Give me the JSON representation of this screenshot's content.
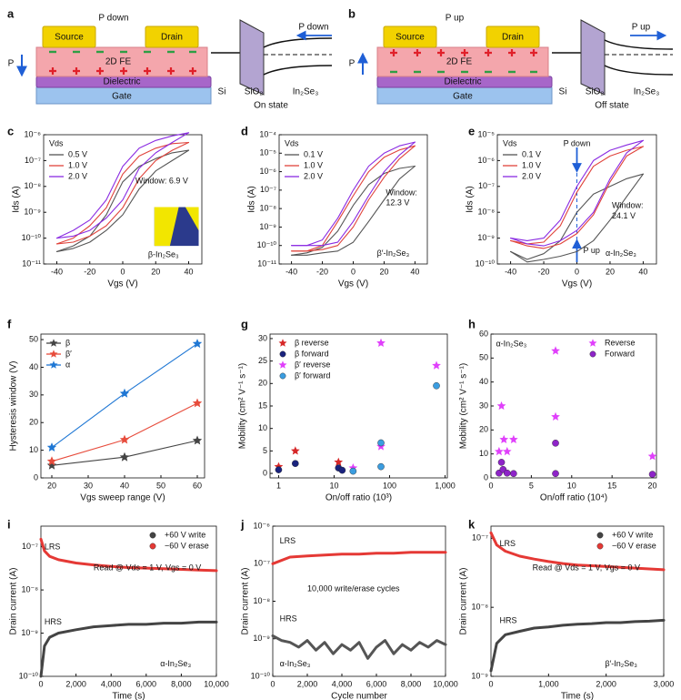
{
  "diagrams": [
    {
      "panel": "a",
      "title": "P down",
      "source": "Source",
      "drain": "Drain",
      "fe": "2D FE",
      "dielectric": "Dielectric",
      "gate": "Gate",
      "p": "P",
      "si": "Si",
      "oxide": "SiO₂",
      "semiconductor": "In₂Se₃",
      "band_label": "P down",
      "state": "On state",
      "p_direction": "down"
    },
    {
      "panel": "b",
      "title": "P up",
      "source": "Source",
      "drain": "Drain",
      "fe": "2D FE",
      "dielectric": "Dielectric",
      "gate": "Gate",
      "p": "P",
      "si": "Si",
      "oxide": "SiO₂",
      "semiconductor": "In₂Se₃",
      "band_label": "P up",
      "state": "Off state",
      "p_direction": "up"
    }
  ],
  "chart_data": [
    {
      "panel": "c",
      "type": "line",
      "x": [
        -40,
        -30,
        -20,
        -10,
        0,
        10,
        20,
        30,
        40
      ],
      "xlim": [
        -48,
        48
      ],
      "xticks": [
        -40,
        -20,
        0,
        20,
        40
      ],
      "yscale": "log",
      "ylim": [
        1e-11,
        1e-06
      ],
      "yticks": [
        {
          "value": 1e-11,
          "label": "10⁻¹¹"
        },
        {
          "value": 1e-10,
          "label": "10⁻¹⁰"
        },
        {
          "value": 1e-09,
          "label": "10⁻⁹"
        },
        {
          "value": 1e-08,
          "label": "10⁻⁸"
        },
        {
          "value": 1e-07,
          "label": "10⁻⁷"
        },
        {
          "value": 1e-06,
          "label": "10⁻⁶"
        }
      ],
      "xlabel": "Vgs (V)",
      "ylabel": "Ids (A)",
      "legend": "upper left",
      "legend_title": "Vds",
      "series": [
        {
          "name": "0.5 V",
          "color": "#555555",
          "values": [
            3e-11,
            5e-11,
            1.2e-10,
            8e-10,
            1.5e-08,
            6e-08,
            1.2e-07,
            2e-07,
            2.5e-07
          ],
          "reverse_values": [
            3e-11,
            4e-11,
            7e-11,
            2e-10,
            8e-10,
            8e-09,
            4e-08,
            1e-07,
            2.5e-07
          ]
        },
        {
          "name": "1.0 V",
          "color": "#e0433b",
          "values": [
            6e-11,
            1e-10,
            3e-10,
            1.5e-09,
            3e-08,
            1.5e-07,
            3e-07,
            4.5e-07,
            5e-07
          ],
          "reverse_values": [
            6e-11,
            7e-11,
            1.2e-10,
            3e-10,
            1.5e-09,
            2e-08,
            1e-07,
            2.5e-07,
            5e-07
          ]
        },
        {
          "name": "2.0 V",
          "color": "#8a2be2",
          "values": [
            1e-10,
            2e-10,
            5e-10,
            3e-09,
            6e-08,
            3e-07,
            6e-07,
            9e-07,
            1.2e-06
          ],
          "reverse_values": [
            1e-10,
            1.2e-10,
            2e-10,
            6e-10,
            3e-09,
            5e-08,
            2e-07,
            5e-07,
            1.2e-06
          ]
        }
      ],
      "annotations": [
        "Window: 6.9 V",
        "β-In₂Se₃"
      ]
    },
    {
      "panel": "d",
      "type": "line",
      "x": [
        -40,
        -30,
        -20,
        -10,
        0,
        10,
        20,
        30,
        40
      ],
      "xlim": [
        -48,
        48
      ],
      "xticks": [
        -40,
        -20,
        0,
        20,
        40
      ],
      "yscale": "log",
      "ylim": [
        1e-11,
        0.0001
      ],
      "yticks": [
        {
          "value": 1e-11,
          "label": "10⁻¹¹"
        },
        {
          "value": 1e-10,
          "label": "10⁻¹⁰"
        },
        {
          "value": 1e-09,
          "label": "10⁻⁹"
        },
        {
          "value": 1e-08,
          "label": "10⁻⁸"
        },
        {
          "value": 1e-07,
          "label": "10⁻⁷"
        },
        {
          "value": 1e-06,
          "label": "10⁻⁶"
        },
        {
          "value": 1e-05,
          "label": "10⁻⁵"
        },
        {
          "value": 0.0001,
          "label": "10⁻⁴"
        }
      ],
      "xlabel": "Vgs (V)",
      "ylabel": "Ids (A)",
      "legend": "upper left",
      "legend_title": "Vds",
      "series": [
        {
          "name": "0.1 V",
          "color": "#555555",
          "values": [
            3e-11,
            4e-11,
            8e-11,
            6e-10,
            1.5e-08,
            2e-07,
            8e-07,
            1.5e-06,
            2e-06
          ],
          "reverse_values": [
            3e-11,
            3e-11,
            4e-11,
            5e-11,
            1.5e-10,
            2e-09,
            3e-08,
            4e-07,
            2e-06
          ]
        },
        {
          "name": "1.0 V",
          "color": "#e0433b",
          "values": [
            5e-11,
            5e-11,
            1e-10,
            2e-09,
            5e-08,
            1e-06,
            6e-06,
            1.5e-05,
            2.5e-05
          ],
          "reverse_values": [
            5e-11,
            5e-11,
            6e-11,
            1e-10,
            1e-09,
            3e-08,
            5e-07,
            5e-06,
            2.5e-05
          ]
        },
        {
          "name": "2.0 V",
          "color": "#8a2be2",
          "values": [
            1e-10,
            1e-10,
            2e-10,
            3e-09,
            1e-07,
            2e-06,
            1e-05,
            2.5e-05,
            4e-05
          ],
          "reverse_values": [
            1e-10,
            1e-10,
            1e-10,
            1.5e-10,
            2e-09,
            5e-08,
            1e-06,
            8e-06,
            4e-05
          ]
        }
      ],
      "annotations": [
        "Window:",
        "12.3 V",
        "β′-In₂Se₃"
      ]
    },
    {
      "panel": "e",
      "type": "line",
      "x": [
        -40,
        -30,
        -20,
        -10,
        0,
        10,
        20,
        30,
        40
      ],
      "xlim": [
        -48,
        48
      ],
      "xticks": [
        -40,
        -20,
        0,
        20,
        40
      ],
      "yscale": "log",
      "ylim": [
        1e-10,
        1e-05
      ],
      "yticks": [
        {
          "value": 1e-10,
          "label": "10⁻¹⁰"
        },
        {
          "value": 1e-09,
          "label": "10⁻⁹"
        },
        {
          "value": 1e-08,
          "label": "10⁻⁸"
        },
        {
          "value": 1e-07,
          "label": "10⁻⁷"
        },
        {
          "value": 1e-06,
          "label": "10⁻⁶"
        },
        {
          "value": 1e-05,
          "label": "10⁻⁵"
        }
      ],
      "xlabel": "Vgs (V)",
      "ylabel": "Ids (A)",
      "legend": "upper left",
      "legend_title": "Vds",
      "series": [
        {
          "name": "0.1 V",
          "color": "#555555",
          "values": [
            3e-10,
            1.5e-10,
            2.5e-10,
            8e-10,
            1e-08,
            5e-08,
            1e-07,
            2e-07,
            3e-07
          ],
          "reverse_values": [
            3e-10,
            1.2e-10,
            1.5e-10,
            2e-10,
            3e-10,
            8e-10,
            5e-09,
            4e-08,
            3e-07
          ]
        },
        {
          "name": "1.0 V",
          "color": "#e0433b",
          "values": [
            8e-10,
            6e-10,
            7e-10,
            3e-09,
            6e-08,
            6e-07,
            1.5e-06,
            2.5e-06,
            3.5e-06
          ],
          "reverse_values": [
            8e-10,
            5e-10,
            4e-10,
            6e-10,
            1.5e-09,
            8e-09,
            1.5e-07,
            1.5e-06,
            3.5e-06
          ]
        },
        {
          "name": "2.0 V",
          "color": "#8a2be2",
          "values": [
            1e-09,
            8e-10,
            1e-09,
            5e-09,
            1e-07,
            1e-06,
            2.5e-06,
            4e-06,
            6e-06
          ],
          "reverse_values": [
            1e-09,
            6e-10,
            5e-10,
            8e-10,
            2e-09,
            1e-08,
            2e-07,
            2e-06,
            6e-06
          ]
        }
      ],
      "annotations": [
        "Window:",
        "24.1 V",
        "α-In₂Se₃",
        "P down",
        "P up"
      ]
    },
    {
      "panel": "f",
      "type": "line",
      "x": [
        20,
        40,
        60
      ],
      "xlim": [
        17,
        62
      ],
      "xticks": [
        20,
        30,
        40,
        50,
        60
      ],
      "ylim": [
        0,
        52
      ],
      "yticks": [
        0,
        10,
        20,
        30,
        40,
        50
      ],
      "xlabel": "Vgs sweep range (V)",
      "ylabel": "Hysteresis window (V)",
      "legend": "upper left",
      "series": [
        {
          "name": "β",
          "color": "#444444",
          "marker": "star",
          "values": [
            4.5,
            7.5,
            13.5
          ]
        },
        {
          "name": "β′",
          "color": "#e74c3c",
          "marker": "star",
          "values": [
            6,
            13.8,
            27
          ]
        },
        {
          "name": "α",
          "color": "#1f77d4",
          "marker": "star",
          "values": [
            11,
            30.5,
            48.5
          ]
        }
      ]
    },
    {
      "panel": "g",
      "type": "scatter",
      "xscale": "log",
      "xlim": [
        0.7,
        1100
      ],
      "xticks": [
        1,
        10,
        100,
        {
          "value": 1000,
          "label": "1,000"
        }
      ],
      "ylim": [
        -1,
        31
      ],
      "yticks": [
        0,
        5,
        10,
        15,
        20,
        25,
        30
      ],
      "xlabel": "On/off ratio (10³)",
      "ylabel": "Mobility (cm² V⁻¹ s⁻¹)",
      "legend": "upper left",
      "series": [
        {
          "name": "β reverse",
          "color": "#d62728",
          "marker": "star",
          "x": [
            1,
            2,
            12
          ],
          "values": [
            1.5,
            5,
            2.5
          ]
        },
        {
          "name": "β forward",
          "color": "#1a237e",
          "marker": "circle",
          "x": [
            1,
            2,
            12,
            14
          ],
          "values": [
            0.8,
            2.2,
            1.2,
            0.7
          ]
        },
        {
          "name": "β′ reverse",
          "color": "#e040fb",
          "marker": "star",
          "x": [
            22,
            70,
            70,
            700
          ],
          "values": [
            1.2,
            29,
            6,
            24
          ]
        },
        {
          "name": "β′ forward",
          "color": "#3b9de0",
          "marker": "circle",
          "x": [
            22,
            70,
            70,
            700
          ],
          "values": [
            0.5,
            1.5,
            6.8,
            19.5
          ]
        }
      ]
    },
    {
      "panel": "h",
      "type": "scatter",
      "xlim": [
        0,
        20.5
      ],
      "xticks": [
        0,
        5,
        10,
        15,
        20
      ],
      "ylim": [
        0,
        60
      ],
      "yticks": [
        0,
        10,
        20,
        30,
        40,
        50,
        60
      ],
      "xlabel": "On/off ratio (10⁴)",
      "ylabel": "Mobility (cm² V⁻¹ s⁻¹)",
      "legend": "upper right",
      "series": [
        {
          "name": "Reverse",
          "color": "#e040fb",
          "marker": "star",
          "x": [
            1,
            1.3,
            1.6,
            2,
            2.8,
            8,
            8,
            20
          ],
          "values": [
            11,
            30,
            16,
            11,
            16,
            53,
            25.5,
            9
          ]
        },
        {
          "name": "Forward",
          "color": "#8e24c8",
          "marker": "circle",
          "x": [
            1,
            1.3,
            1.5,
            2,
            2.8,
            8,
            8,
            20
          ],
          "values": [
            2,
            6.5,
            3.5,
            2,
            1.8,
            14.5,
            1.8,
            1.5
          ]
        }
      ],
      "annotations": [
        "α-In₂Se₃"
      ]
    },
    {
      "panel": "i",
      "type": "line",
      "x": [
        0,
        200,
        500,
        1000,
        2000,
        3000,
        4000,
        5000,
        6000,
        7000,
        8000,
        9000,
        10000
      ],
      "xlim": [
        0,
        10000
      ],
      "xticks": [
        0,
        {
          "value": 2000,
          "label": "2,000"
        },
        {
          "value": 4000,
          "label": "4,000"
        },
        {
          "value": 6000,
          "label": "6,000"
        },
        {
          "value": 8000,
          "label": "8,000"
        },
        {
          "value": 10000,
          "label": "10,000"
        }
      ],
      "yscale": "log",
      "ylim": [
        1e-10,
        3e-07
      ],
      "yticks": [
        {
          "value": 1e-10,
          "label": "10⁻¹⁰"
        },
        {
          "value": 1e-09,
          "label": "10⁻⁹"
        },
        {
          "value": 1e-08,
          "label": "10⁻⁸"
        },
        {
          "value": 1e-07,
          "label": "10⁻⁷"
        }
      ],
      "xlabel": "Time (s)",
      "ylabel": "Drain current (A)",
      "legend": "upper right",
      "series": [
        {
          "name": "+60 V write",
          "color": "#444444",
          "marker": "circle",
          "values": [
            1e-10,
            5e-10,
            8e-10,
            1e-09,
            1.2e-09,
            1.4e-09,
            1.5e-09,
            1.6e-09,
            1.6e-09,
            1.7e-09,
            1.7e-09,
            1.8e-09,
            1.8e-09
          ]
        },
        {
          "name": "−60 V erase",
          "color": "#e53935",
          "marker": "circle",
          "values": [
            1.5e-07,
            8e-08,
            6e-08,
            5e-08,
            4.2e-08,
            3.8e-08,
            3.5e-08,
            3.3e-08,
            3.2e-08,
            3.1e-08,
            3e-08,
            2.9e-08,
            2.8e-08
          ]
        }
      ],
      "annotations": [
        "LRS",
        "HRS",
        "Read @ Vds = 1 V, Vgs = 0 V",
        "α-In₂Se₃"
      ]
    },
    {
      "panel": "j",
      "type": "line",
      "xlim": [
        0,
        10000
      ],
      "xticks": [
        0,
        {
          "value": 2000,
          "label": "2,000"
        },
        {
          "value": 4000,
          "label": "4,000"
        },
        {
          "value": 6000,
          "label": "6,000"
        },
        {
          "value": 8000,
          "label": "8,000"
        },
        {
          "value": 10000,
          "label": "10,000"
        }
      ],
      "yscale": "log",
      "ylim": [
        1e-10,
        1e-06
      ],
      "yticks": [
        {
          "value": 1e-10,
          "label": "10⁻¹⁰"
        },
        {
          "value": 1e-09,
          "label": "10⁻⁹"
        },
        {
          "value": 1e-08,
          "label": "10⁻⁸"
        },
        {
          "value": 1e-07,
          "label": "10⁻⁷"
        },
        {
          "value": 1e-06,
          "label": "10⁻⁶"
        }
      ],
      "xlabel": "Cycle number",
      "ylabel": "Drain current (A)",
      "legend": "none",
      "series": [
        {
          "name": "LRS",
          "color": "#e53935",
          "x": [
            0,
            1000,
            2000,
            3000,
            4000,
            5000,
            6000,
            7000,
            8000,
            9000,
            10000
          ],
          "values": [
            1e-07,
            1.5e-07,
            1.6e-07,
            1.7e-07,
            1.8e-07,
            1.8e-07,
            1.9e-07,
            1.9e-07,
            2e-07,
            2e-07,
            2e-07
          ]
        },
        {
          "name": "HRS",
          "color": "#555555",
          "x": [
            0,
            500,
            1000,
            1500,
            2000,
            2500,
            3000,
            3500,
            4000,
            4500,
            5000,
            5500,
            6000,
            6500,
            7000,
            7500,
            8000,
            8500,
            9000,
            9500,
            10000
          ],
          "values": [
            1.2e-09,
            9e-10,
            8e-10,
            6e-10,
            9e-10,
            5e-10,
            8e-10,
            4e-10,
            7e-10,
            5e-10,
            8e-10,
            3e-10,
            6e-10,
            9e-10,
            4e-10,
            7e-10,
            5e-10,
            8e-10,
            6e-10,
            9e-10,
            7e-10
          ]
        }
      ],
      "annotations": [
        "LRS",
        "HRS",
        "10,000 write/erase cycles",
        "α-In₂Se₃"
      ]
    },
    {
      "panel": "k",
      "type": "line",
      "x": [
        0,
        100,
        250,
        500,
        750,
        1000,
        1250,
        1500,
        1750,
        2000,
        2250,
        2500,
        2750,
        3000
      ],
      "xlim": [
        0,
        3000
      ],
      "xticks": [
        0,
        {
          "value": 1000,
          "label": "1,000"
        },
        {
          "value": 2000,
          "label": "2,000"
        },
        {
          "value": 3000,
          "label": "3,000"
        }
      ],
      "yscale": "log",
      "ylim": [
        1e-09,
        1.5e-07
      ],
      "yticks": [
        {
          "value": 1e-09,
          "label": "10⁻⁹"
        },
        {
          "value": 1e-08,
          "label": "10⁻⁸"
        },
        {
          "value": 1e-07,
          "label": "10⁻⁷"
        }
      ],
      "xlabel": "Time (s)",
      "ylabel": "Drain current (A)",
      "legend": "upper right",
      "series": [
        {
          "name": "+60 V write",
          "color": "#444444",
          "marker": "circle",
          "values": [
            1.2e-09,
            3e-09,
            4e-09,
            4.5e-09,
            5e-09,
            5.2e-09,
            5.5e-09,
            5.7e-09,
            5.8e-09,
            6e-09,
            6e-09,
            6.2e-09,
            6.3e-09,
            6.5e-09
          ]
        },
        {
          "name": "−60 V erase",
          "color": "#e53935",
          "marker": "circle",
          "values": [
            1.2e-07,
            8e-08,
            6.5e-08,
            5.5e-08,
            5e-08,
            4.6e-08,
            4.3e-08,
            4.1e-08,
            4e-08,
            3.9e-08,
            3.8e-08,
            3.7e-08,
            3.6e-08,
            3.5e-08
          ]
        }
      ],
      "annotations": [
        "LRS",
        "HRS",
        "Read @ Vds = 1 V, Vgs = 0 V",
        "β′-In₂Se₃"
      ]
    }
  ]
}
